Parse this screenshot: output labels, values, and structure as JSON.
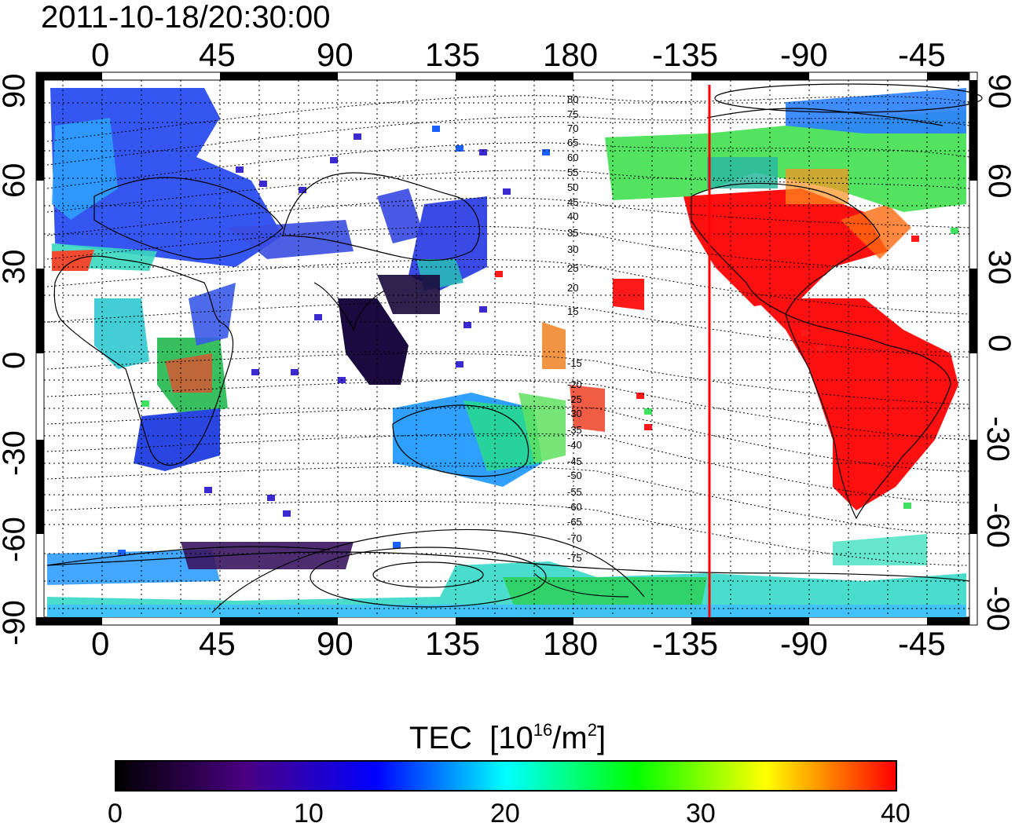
{
  "timestamp": "2011-10-18/20:30:00",
  "top_axis_ticks": [
    "0",
    "45",
    "90",
    "135",
    "180",
    "-135",
    "-90",
    "-45"
  ],
  "bottom_axis_ticks": [
    "0",
    "45",
    "90",
    "135",
    "180",
    "-135",
    "-90",
    "-45"
  ],
  "left_axis_ticks": [
    "90",
    "60",
    "30",
    "0",
    "-30",
    "-60",
    "-90"
  ],
  "right_axis_ticks": [
    "90",
    "60",
    "30",
    "0",
    "-30",
    "-60",
    "-90"
  ],
  "contour_labels": [
    "80",
    "75",
    "70",
    "65",
    "60",
    "55",
    "50",
    "45",
    "40",
    "35",
    "30",
    "25",
    "20",
    "15",
    "-15",
    "-20",
    "-25",
    "-30",
    "-35",
    "-40",
    "-45",
    "-50",
    "-55",
    "-60",
    "-65",
    "-70",
    "-75"
  ],
  "colorbar": {
    "title_main": "TEC",
    "title_unit_base": "[10",
    "title_unit_exp": "16",
    "title_unit_mid": "/m",
    "title_unit_exp2": "2",
    "title_unit_end": "]",
    "ticks": [
      "0",
      "10",
      "20",
      "30",
      "40"
    ],
    "range": [
      0,
      40
    ],
    "colors": [
      "#000000",
      "#4b0082",
      "#0000ff",
      "#00ffff",
      "#00ff00",
      "#ffff00",
      "#ff0000"
    ]
  },
  "terminator_line_color": "#ff0000",
  "map_extent": {
    "lon_range_east": [
      -20,
      340
    ],
    "lat_range": [
      -90,
      90
    ]
  }
}
